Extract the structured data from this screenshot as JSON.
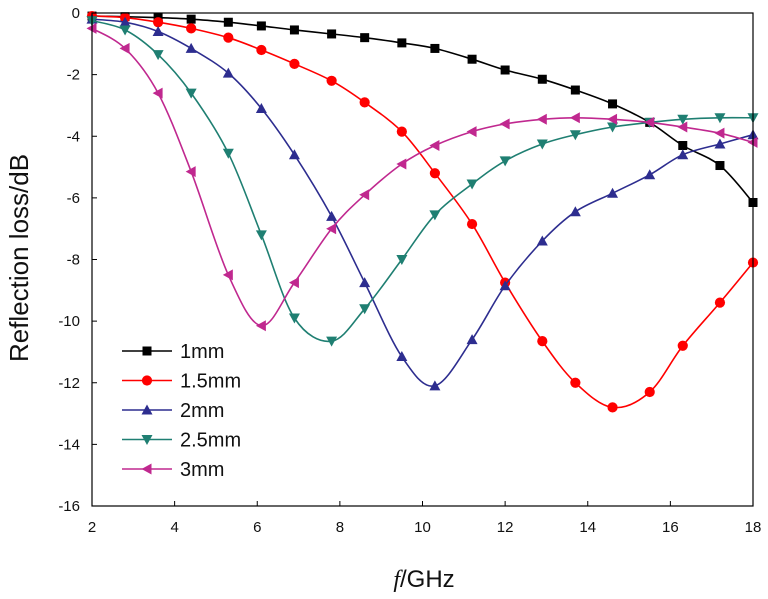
{
  "chart_data": {
    "type": "line",
    "xlabel_italic": "f",
    "xlabel_rest": "/GHz",
    "ylabel": "Reflection loss/dB",
    "xlim": [
      2,
      18
    ],
    "ylim": [
      -16,
      0
    ],
    "xticks": [
      "2",
      "4",
      "6",
      "8",
      "10",
      "12",
      "14",
      "16",
      "18"
    ],
    "yticks": [
      "0",
      "-2",
      "-4",
      "-6",
      "-8",
      "-10",
      "-12",
      "-14",
      "-16"
    ],
    "legend_position": "bottom-left",
    "series": [
      {
        "name": "1mm",
        "color": "#000000",
        "marker": "square",
        "x": [
          2,
          2.8,
          3.6,
          4.4,
          5.3,
          6.1,
          6.9,
          7.8,
          8.6,
          9.5,
          10.3,
          11.2,
          12.0,
          12.9,
          13.7,
          14.6,
          15.5,
          16.3,
          17.2,
          18.0
        ],
        "y": [
          -0.1,
          -0.12,
          -0.15,
          -0.2,
          -0.3,
          -0.42,
          -0.55,
          -0.68,
          -0.8,
          -0.97,
          -1.15,
          -1.5,
          -1.85,
          -2.15,
          -2.5,
          -2.95,
          -3.55,
          -4.3,
          -4.95,
          -6.15
        ]
      },
      {
        "name": "1.5mm",
        "color": "#ff0000",
        "marker": "circle",
        "x": [
          2,
          2.8,
          3.6,
          4.4,
          5.3,
          6.1,
          6.9,
          7.8,
          8.6,
          9.5,
          10.3,
          11.2,
          12.0,
          12.9,
          13.7,
          14.6,
          15.5,
          16.3,
          17.2,
          18.0
        ],
        "y": [
          -0.1,
          -0.15,
          -0.3,
          -0.5,
          -0.8,
          -1.2,
          -1.65,
          -2.2,
          -2.9,
          -3.85,
          -5.2,
          -6.85,
          -8.75,
          -10.65,
          -12.0,
          -12.8,
          -12.3,
          -10.8,
          -9.4,
          -8.1
        ]
      },
      {
        "name": "2mm",
        "color": "#2d2d8f",
        "marker": "triangle-up",
        "x": [
          2,
          2.8,
          3.6,
          4.4,
          5.3,
          6.1,
          6.9,
          7.8,
          8.6,
          9.5,
          10.3,
          11.2,
          12.0,
          12.9,
          13.7,
          14.6,
          15.5,
          16.3,
          17.2,
          18.0
        ],
        "y": [
          -0.2,
          -0.3,
          -0.6,
          -1.15,
          -1.95,
          -3.1,
          -4.6,
          -6.6,
          -8.75,
          -11.15,
          -12.1,
          -10.6,
          -8.85,
          -7.4,
          -6.45,
          -5.85,
          -5.25,
          -4.6,
          -4.25,
          -3.95
        ]
      },
      {
        "name": "2.5mm",
        "color": "#1f7f72",
        "marker": "triangle-down",
        "x": [
          2,
          2.8,
          3.6,
          4.4,
          5.3,
          6.1,
          6.9,
          7.8,
          8.6,
          9.5,
          10.3,
          11.2,
          12.0,
          12.9,
          13.7,
          14.6,
          15.5,
          16.3,
          17.2,
          18.0
        ],
        "y": [
          -0.25,
          -0.55,
          -1.35,
          -2.6,
          -4.55,
          -7.2,
          -9.9,
          -10.65,
          -9.6,
          -8.0,
          -6.55,
          -5.55,
          -4.8,
          -4.25,
          -3.95,
          -3.7,
          -3.55,
          -3.45,
          -3.4,
          -3.4
        ]
      },
      {
        "name": "3mm",
        "color": "#c0288f",
        "marker": "triangle-left",
        "x": [
          2,
          2.8,
          3.6,
          4.4,
          5.3,
          6.1,
          6.9,
          7.8,
          8.6,
          9.5,
          10.3,
          11.2,
          12.0,
          12.9,
          13.7,
          14.6,
          15.5,
          16.3,
          17.2,
          18.0
        ],
        "y": [
          -0.5,
          -1.15,
          -2.6,
          -5.15,
          -8.5,
          -10.15,
          -8.75,
          -7.0,
          -5.9,
          -4.9,
          -4.3,
          -3.85,
          -3.6,
          -3.45,
          -3.4,
          -3.45,
          -3.55,
          -3.7,
          -3.9,
          -4.2
        ]
      }
    ]
  }
}
